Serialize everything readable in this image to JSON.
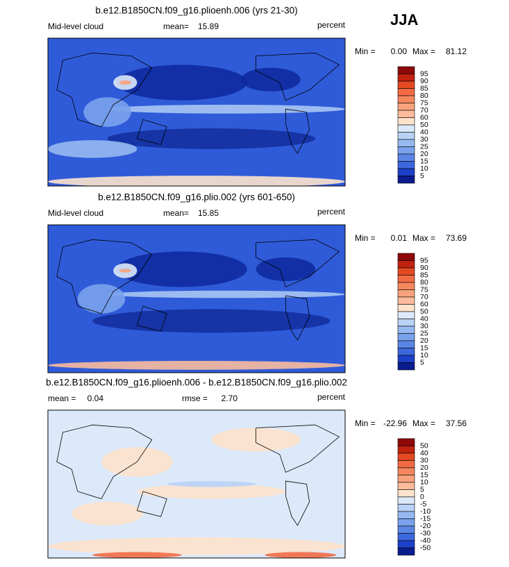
{
  "season": "JJA",
  "panels": [
    {
      "title": "b.e12.B1850CN.f09_g16.plioenh.006 (yrs 21-30)",
      "left_label": "Mid-level cloud",
      "stats": [
        {
          "label": "mean=",
          "value": "15.89"
        }
      ],
      "units": "percent",
      "min_label": "Min =",
      "min": "0.00",
      "max_label": "Max =",
      "max": "81.12",
      "colorbar": {
        "labels": [
          95,
          90,
          85,
          80,
          75,
          70,
          60,
          50,
          40,
          30,
          25,
          20,
          15,
          10,
          5
        ],
        "colors": [
          "#8e0a0a",
          "#c0230f",
          "#e34a22",
          "#f26b45",
          "#f5875f",
          "#f8a27e",
          "#fbbb9c",
          "#fde3cc",
          "#dce9fa",
          "#b9d2f6",
          "#97b9f1",
          "#7aa2ec",
          "#5b86e6",
          "#3d67dd",
          "#1d40c8",
          "#0b1c8f"
        ]
      }
    },
    {
      "title": "b.e12.B1850CN.f09_g16.plio.002 (yrs 601-650)",
      "left_label": "Mid-level cloud",
      "stats": [
        {
          "label": "mean=",
          "value": "15.85"
        }
      ],
      "units": "percent",
      "min_label": "Min =",
      "min": "0.01",
      "max_label": "Max =",
      "max": "73.69",
      "colorbar": {
        "labels": [
          95,
          90,
          85,
          80,
          75,
          70,
          60,
          50,
          40,
          30,
          25,
          20,
          15,
          10,
          5
        ],
        "colors": [
          "#8e0a0a",
          "#c0230f",
          "#e34a22",
          "#f26b45",
          "#f5875f",
          "#f8a27e",
          "#fbbb9c",
          "#fde3cc",
          "#dce9fa",
          "#b9d2f6",
          "#97b9f1",
          "#7aa2ec",
          "#5b86e6",
          "#3d67dd",
          "#1d40c8",
          "#0b1c8f"
        ]
      }
    },
    {
      "title": "b.e12.B1850CN.f09_g16.plioenh.006 - b.e12.B1850CN.f09_g16.plio.002",
      "stats": [
        {
          "label": "mean =",
          "value": "0.04"
        },
        {
          "label": "rmse =",
          "value": "2.70"
        }
      ],
      "units": "percent",
      "min_label": "Min =",
      "min": "-22.96",
      "max_label": "Max =",
      "max": "37.56",
      "colorbar": {
        "labels": [
          50,
          40,
          30,
          20,
          15,
          10,
          5,
          0,
          -5,
          -10,
          -15,
          -20,
          -30,
          -40,
          -50
        ],
        "colors": [
          "#8e0a0a",
          "#c0230f",
          "#e34a22",
          "#f26b45",
          "#f5875f",
          "#f8a27e",
          "#fbbb9c",
          "#fde3cc",
          "#dce9fa",
          "#b9d2f6",
          "#97b9f1",
          "#7aa2ec",
          "#5b86e6",
          "#3d67dd",
          "#1d40c8",
          "#0b1c8f"
        ]
      }
    }
  ]
}
